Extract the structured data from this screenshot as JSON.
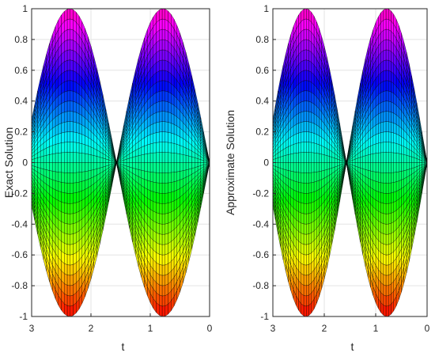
{
  "chart_data": [
    {
      "type": "surface",
      "view": "side view along t-axis",
      "xlabel": "t",
      "ylabel": "Exact Solution",
      "xlim": [
        3,
        0
      ],
      "ylim": [
        -1,
        1
      ],
      "xticks": [
        "3",
        "2",
        "1",
        "0"
      ],
      "yticks": [
        "1",
        "0.8",
        "0.6",
        "0.4",
        "0.2",
        "0",
        "-0.2",
        "-0.4",
        "-0.6",
        "-0.8",
        "-1"
      ],
      "grid": true,
      "colormap": "hsv",
      "surface": {
        "function": "u(x,t) = x * sin(2t)",
        "t_range": [
          0,
          3
        ],
        "x_range": [
          -1,
          1
        ],
        "peak": {
          "t": 2.25,
          "value": 1
        },
        "trough": {
          "t": 0.75,
          "value": -1
        }
      }
    },
    {
      "type": "surface",
      "view": "side view along t-axis",
      "xlabel": "t",
      "ylabel": "Approximate Solution",
      "xlim": [
        3,
        0
      ],
      "ylim": [
        -1,
        1
      ],
      "xticks": [
        "3",
        "2",
        "1",
        "0"
      ],
      "yticks": [
        "1",
        "0.8",
        "0.6",
        "0.4",
        "0.2",
        "0",
        "-0.2",
        "-0.4",
        "-0.6",
        "-0.8",
        "-1"
      ],
      "grid": true,
      "colormap": "hsv",
      "surface": {
        "function": "u(x,t) = x * sin(2t)",
        "t_range": [
          0,
          3
        ],
        "x_range": [
          -1,
          1
        ],
        "peak": {
          "t": 2.25,
          "value": 1
        },
        "trough": {
          "t": 0.75,
          "value": -1
        }
      }
    }
  ]
}
